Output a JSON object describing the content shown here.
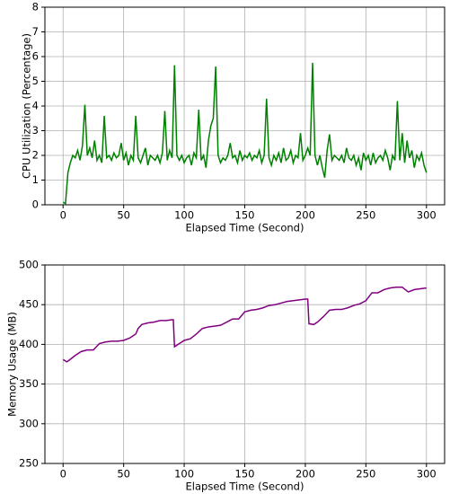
{
  "chart_data": [
    {
      "type": "line",
      "xlabel": "Elapsed Time (Second)",
      "ylabel": "CPU Utilization (Percentage)",
      "color": "#008000",
      "grid": true,
      "xlim": [
        -15,
        315
      ],
      "xticks": [
        0,
        50,
        100,
        150,
        200,
        250,
        300
      ],
      "ylim": [
        0,
        8
      ],
      "yticks": [
        0,
        1,
        2,
        3,
        4,
        5,
        6,
        7,
        8
      ],
      "x": [
        0,
        2,
        4,
        6,
        8,
        10,
        12,
        14,
        16,
        18,
        20,
        22,
        24,
        26,
        28,
        30,
        32,
        34,
        36,
        38,
        40,
        42,
        44,
        46,
        48,
        50,
        52,
        54,
        56,
        58,
        60,
        62,
        64,
        66,
        68,
        70,
        72,
        74,
        76,
        78,
        80,
        82,
        84,
        86,
        88,
        90,
        92,
        94,
        96,
        98,
        100,
        102,
        104,
        106,
        108,
        110,
        112,
        114,
        116,
        118,
        120,
        122,
        124,
        126,
        128,
        130,
        132,
        134,
        136,
        138,
        140,
        142,
        144,
        146,
        148,
        150,
        152,
        154,
        156,
        158,
        160,
        162,
        164,
        166,
        168,
        170,
        172,
        174,
        176,
        178,
        180,
        182,
        184,
        186,
        188,
        190,
        192,
        194,
        196,
        198,
        200,
        202,
        204,
        206,
        208,
        210,
        212,
        214,
        216,
        218,
        220,
        222,
        224,
        226,
        228,
        230,
        232,
        234,
        236,
        238,
        240,
        242,
        244,
        246,
        248,
        250,
        252,
        254,
        256,
        258,
        260,
        262,
        264,
        266,
        268,
        270,
        272,
        274,
        276,
        278,
        280,
        282,
        284,
        286,
        288,
        290,
        292,
        294,
        296,
        298,
        300
      ],
      "values": [
        0.1,
        0.05,
        1.3,
        1.7,
        2.0,
        1.9,
        2.2,
        1.8,
        2.4,
        4.05,
        2.0,
        2.3,
        1.9,
        2.6,
        1.8,
        2.0,
        1.7,
        3.6,
        1.9,
        2.0,
        1.8,
        2.1,
        1.9,
        2.0,
        2.5,
        1.8,
        2.1,
        1.6,
        2.0,
        1.8,
        3.6,
        1.9,
        1.7,
        2.0,
        2.3,
        1.6,
        2.0,
        1.9,
        1.8,
        2.0,
        1.7,
        2.1,
        3.8,
        1.8,
        2.2,
        1.9,
        5.65,
        2.0,
        1.8,
        2.0,
        1.7,
        1.9,
        2.0,
        1.6,
        2.1,
        1.9,
        3.85,
        1.8,
        2.0,
        1.5,
        2.6,
        3.2,
        3.5,
        5.6,
        2.0,
        1.7,
        1.9,
        1.8,
        2.0,
        2.5,
        1.9,
        2.0,
        1.7,
        2.2,
        1.8,
        2.0,
        1.9,
        2.1,
        1.8,
        2.0,
        1.9,
        2.2,
        1.7,
        2.0,
        4.3,
        1.9,
        1.6,
        2.0,
        1.8,
        2.1,
        1.7,
        2.3,
        1.8,
        1.9,
        2.2,
        1.7,
        2.0,
        1.9,
        2.9,
        1.8,
        2.0,
        2.3,
        2.0,
        5.75,
        2.0,
        1.6,
        2.0,
        1.5,
        1.1,
        2.2,
        2.85,
        1.8,
        2.0,
        1.9,
        1.8,
        2.0,
        1.7,
        2.3,
        1.9,
        1.8,
        2.0,
        1.6,
        1.9,
        1.4,
        2.1,
        1.8,
        2.0,
        1.6,
        2.1,
        1.7,
        1.9,
        2.0,
        1.8,
        2.2,
        1.9,
        1.4,
        2.0,
        1.8,
        4.2,
        1.8,
        2.9,
        1.7,
        2.6,
        1.9,
        2.2,
        1.5,
        2.0,
        1.8,
        2.1,
        1.6,
        1.3
      ]
    },
    {
      "type": "line",
      "xlabel": "Elapsed Time (Second)",
      "ylabel": "Memory Usage (MB)",
      "color": "#800080",
      "grid": true,
      "xlim": [
        -15,
        315
      ],
      "xticks": [
        0,
        50,
        100,
        150,
        200,
        250,
        300
      ],
      "ylim": [
        250,
        500
      ],
      "yticks": [
        250,
        300,
        350,
        400,
        450,
        500
      ],
      "x": [
        0,
        3,
        5,
        10,
        15,
        20,
        25,
        30,
        35,
        40,
        45,
        50,
        55,
        60,
        62,
        65,
        70,
        75,
        80,
        85,
        90,
        91,
        92,
        95,
        100,
        105,
        110,
        115,
        120,
        125,
        130,
        135,
        140,
        145,
        150,
        155,
        160,
        165,
        170,
        175,
        180,
        185,
        190,
        195,
        200,
        202,
        203,
        207,
        210,
        215,
        220,
        225,
        230,
        235,
        240,
        245,
        250,
        255,
        260,
        265,
        270,
        275,
        280,
        285,
        290,
        295,
        300
      ],
      "values": [
        381,
        378,
        380,
        386,
        391,
        393,
        393,
        401,
        403,
        404,
        404,
        405,
        408,
        413,
        420,
        425,
        427,
        428,
        430,
        430,
        431,
        431,
        397,
        400,
        405,
        407,
        413,
        420,
        422,
        423,
        424,
        428,
        432,
        432,
        441,
        443,
        444,
        446,
        449,
        450,
        452,
        454,
        455,
        456,
        457,
        457,
        426,
        425,
        428,
        435,
        443,
        444,
        444,
        446,
        449,
        451,
        455,
        465,
        465,
        469,
        471,
        472,
        472,
        466,
        469,
        470,
        471
      ]
    }
  ]
}
